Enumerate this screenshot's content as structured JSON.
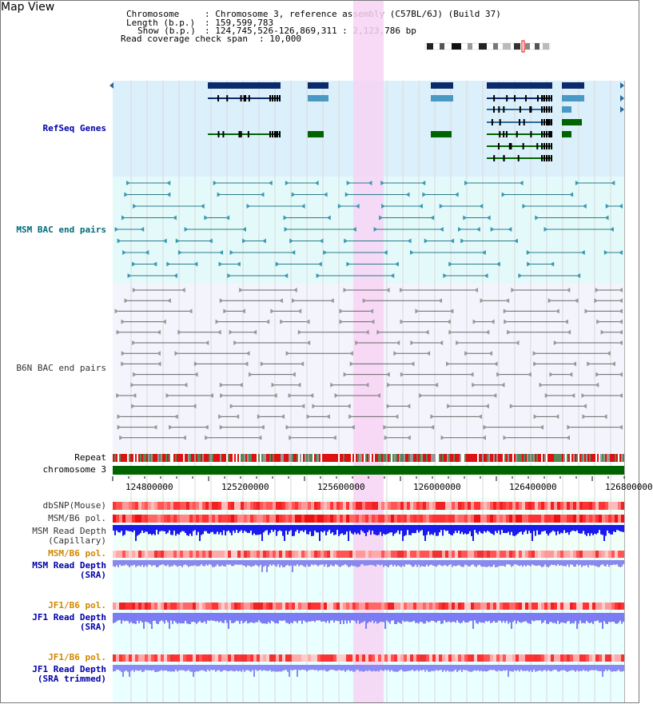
{
  "window": {
    "title": "Map View"
  },
  "header": {
    "chromosome_label": "Chromosome",
    "chromosome_value": ": Chromosome 3, reference assembly (C57BL/6J) (Build 37)",
    "length_label": "Length (b.p.)",
    "length_value": ": 159,599,783",
    "show_label": "Show (b.p.)",
    "show_value": ": 124,745,526-126,869,311 : 2,123,786 bp",
    "coverage_label": "Read coverage check span",
    "coverage_value": ": 10,000"
  },
  "tracks": {
    "refseq": "RefSeq Genes",
    "msm_bac": "MSM BAC end pairs",
    "b6n_bac": "B6N BAC end pairs",
    "repeat": "Repeat",
    "chromosome": "chromosome 3",
    "dbsnp": "dbSNP(Mouse)",
    "msm_b6_pol_1": "MSM/B6 pol.",
    "msm_depth_cap_1": "MSM Read Depth",
    "msm_depth_cap_2": "(Capillary)",
    "msm_b6_pol_2": "MSM/B6 pol.",
    "msm_depth_sra_1": "MSM Read Depth",
    "msm_depth_sra_2": "(SRA)",
    "jf1_b6_pol_1": "JF1/B6 pol.",
    "jf1_depth_sra_1": "JF1 Read Depth",
    "jf1_depth_sra_2": "(SRA)",
    "jf1_b6_pol_2": "JF1/B6 pol.",
    "jf1_depth_trim_1": "JF1 Read Depth",
    "jf1_depth_trim_2": "(SRA trimmed)"
  },
  "axis": {
    "ticks": [
      "124800000",
      "125200000",
      "125600000",
      "126000000",
      "126400000",
      "126800000"
    ]
  },
  "colors": {
    "refseq_band": "#dcf0fb",
    "msm_band": "#e4fafa",
    "b6n_band": "#f4f4fc",
    "highlight": "#f7d4f4",
    "chromosome_bar": "#006400",
    "label_blue": "#0000aa",
    "label_teal": "#006b7a",
    "label_orange": "#d08800",
    "depth_dark_blue": "#1a1aee",
    "depth_light_blue": "#7b7bf4"
  }
}
